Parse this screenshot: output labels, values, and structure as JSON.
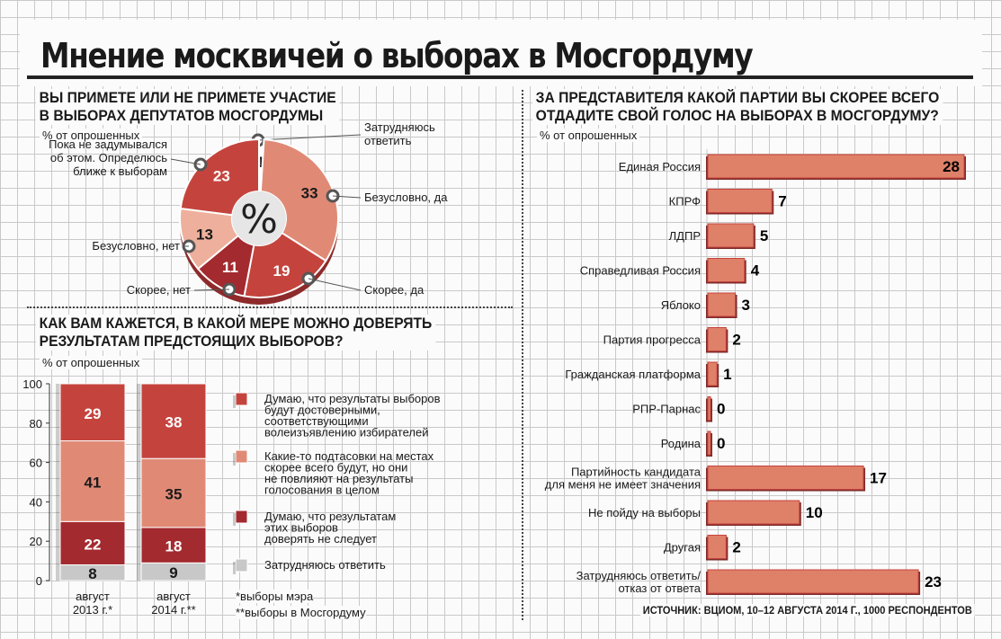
{
  "title": "Мнение москвичей о выборах в Мосгордуму",
  "source": "ИСТОЧНИК: ВЦИОМ, 10–12 АВГУСТА 2014 Г., 1000 РЕСПОНДЕНТОВ",
  "unit_label": "% от опрошенных",
  "notes": [
    "*выборы мэра",
    "**выборы в Мосгордуму"
  ],
  "colors": {
    "dark_red": "#a32a2f",
    "red": "#c4443d",
    "salmon": "#e08a76",
    "light_salmon": "#eeb09c",
    "gray": "#c8c8c8",
    "white": "#ffffff"
  },
  "chart_data": [
    {
      "type": "pie",
      "title": "ВЫ ПРИМЕТЕ ИЛИ НЕ ПРИМЕТЕ УЧАСТИЕ\nВ ВЫБОРАХ ДЕПУТАТОВ МОСГОРДУМЫ",
      "center_label": "%",
      "slices": [
        {
          "label": "Затрудняюсь\nответить",
          "value": 1,
          "color": "#ffffff"
        },
        {
          "label": "Безусловно, да",
          "value": 33,
          "color": "#e08a76"
        },
        {
          "label": "Скорее, да",
          "value": 19,
          "color": "#c4443d"
        },
        {
          "label": "Скорее, нет",
          "value": 11,
          "color": "#a32a2f"
        },
        {
          "label": "Безусловно, нет",
          "value": 13,
          "color": "#eeb09c"
        },
        {
          "label": "Пока не задумывался\nоб этом. Определюсь\nближе к выборам",
          "value": 23,
          "color": "#c4443d"
        }
      ]
    },
    {
      "type": "bar",
      "title": "КАК ВАМ КАЖЕТСЯ, В КАКОЙ МЕРЕ МОЖНО ДОВЕРЯТЬ\nРЕЗУЛЬТАТАМ ПРЕДСТОЯЩИХ ВЫБОРОВ?",
      "stacked": true,
      "categories": [
        "август\n2013 г.*",
        "август\n2014 г.**"
      ],
      "ylim": [
        0,
        100
      ],
      "yticks": [
        0,
        20,
        40,
        60,
        80,
        100
      ],
      "series": [
        {
          "name": "Затрудняюсь ответить",
          "values": [
            8,
            9
          ],
          "color": "#c8c8c8"
        },
        {
          "name": "Думаю, что результатам\nэтих выборов\nдоверять не следует",
          "values": [
            22,
            18
          ],
          "color": "#a32a2f"
        },
        {
          "name": "Какие-то подтасовки на местах\nскорее всего будут, но они\nне повлияют на результаты\nголосования в целом",
          "values": [
            41,
            35
          ],
          "color": "#e08a76"
        },
        {
          "name": "Думаю, что результаты выборов\nбудут достоверными,\nсоответствующими\nволеизъявлению избирателей",
          "values": [
            29,
            38
          ],
          "color": "#c4443d"
        }
      ],
      "legend_order": [
        3,
        2,
        1,
        0
      ]
    },
    {
      "type": "bar",
      "orientation": "horizontal",
      "title": "ЗА ПРЕДСТАВИТЕЛЯ КАКОЙ ПАРТИИ ВЫ СКОРЕЕ ВСЕГО\nОТДАДИТЕ СВОЙ ГОЛОС НА ВЫБОРАХ В МОСГОРДУМУ?",
      "categories": [
        "Единая Россия",
        "КПРФ",
        "ЛДПР",
        "Справедливая Россия",
        "Яблоко",
        "Партия прогресса",
        "Гражданская платформа",
        "РПР-Парнас",
        "Родина",
        "Партийность кандидата\nдля меня не имеет значения",
        "Не пойду на выборы",
        "Другая",
        "Затрудняюсь ответить/\nотказ от ответа"
      ],
      "values": [
        28,
        7,
        5,
        4,
        3,
        2,
        1,
        0,
        0,
        17,
        10,
        2,
        23
      ],
      "xlim": [
        0,
        28
      ]
    }
  ]
}
